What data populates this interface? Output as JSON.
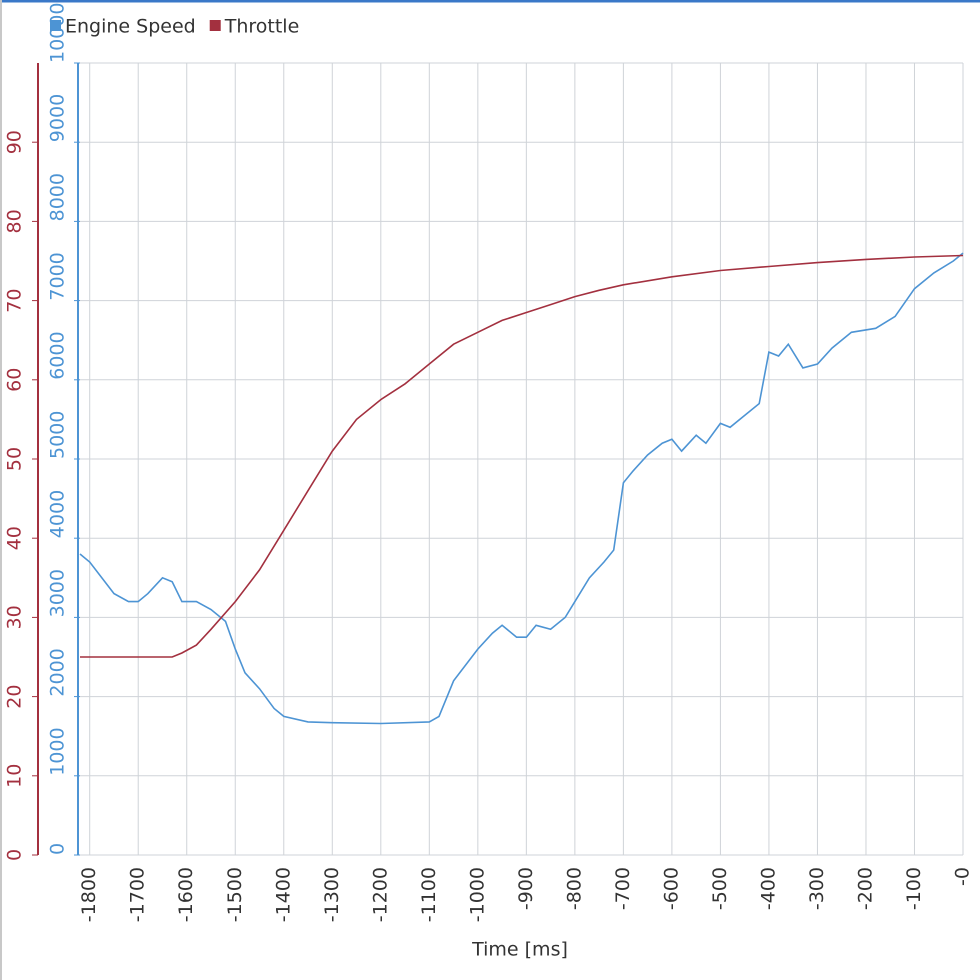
{
  "chart_data": {
    "type": "line",
    "x_label": "Time [ms]",
    "xlim": [
      -1820,
      0
    ],
    "xticks": [
      -1800,
      -1700,
      -1600,
      -1500,
      -1400,
      -1300,
      -1200,
      -1100,
      -1000,
      -900,
      -800,
      -700,
      -600,
      -500,
      -400,
      -300,
      -200,
      -100,
      {
        "value": 0,
        "label": "-0"
      }
    ],
    "ylim": [
      0,
      10000
    ],
    "yticks": [
      0,
      1000,
      2000,
      3000,
      4000,
      5000,
      6000,
      7000,
      8000,
      9000,
      10000
    ],
    "y2lim": [
      0,
      100
    ],
    "y2ticks": [
      0,
      10,
      20,
      30,
      40,
      50,
      60,
      70,
      80,
      90
    ],
    "grid": true,
    "legend": "top-left",
    "series": [
      {
        "name": "Engine Speed",
        "color": "#4d94d4",
        "x": [
          -1820,
          -1800,
          -1750,
          -1720,
          -1700,
          -1680,
          -1650,
          -1630,
          -1610,
          -1580,
          -1550,
          -1520,
          -1500,
          -1480,
          -1450,
          -1420,
          -1400,
          -1350,
          -1300,
          -1200,
          -1100,
          -1080,
          -1050,
          -1000,
          -970,
          -950,
          -920,
          -900,
          -880,
          -850,
          -820,
          -800,
          -770,
          -740,
          -720,
          -700,
          -680,
          -650,
          -620,
          -600,
          -580,
          -550,
          -530,
          -500,
          -480,
          -450,
          -420,
          -400,
          -380,
          -360,
          -330,
          -300,
          -270,
          -230,
          -180,
          -140,
          -100,
          -60,
          -20,
          0
        ],
        "values": [
          3800,
          3700,
          3300,
          3200,
          3200,
          3300,
          3500,
          3450,
          3200,
          3200,
          3100,
          2950,
          2600,
          2300,
          2100,
          1850,
          1750,
          1680,
          1670,
          1660,
          1680,
          1750,
          2200,
          2600,
          2800,
          2900,
          2750,
          2750,
          2900,
          2850,
          3000,
          3200,
          3500,
          3700,
          3850,
          4700,
          4850,
          5050,
          5200,
          5250,
          5100,
          5300,
          5200,
          5450,
          5400,
          5550,
          5700,
          6350,
          6300,
          6450,
          6150,
          6200,
          6400,
          6600,
          6650,
          6800,
          7150,
          7350,
          7500,
          7600
        ]
      },
      {
        "name": "Throttle",
        "color": "#a3303f",
        "axis": "y2",
        "x": [
          -1820,
          -1630,
          -1610,
          -1580,
          -1550,
          -1500,
          -1450,
          -1400,
          -1350,
          -1300,
          -1250,
          -1200,
          -1150,
          -1100,
          -1050,
          -1000,
          -950,
          -900,
          -850,
          -800,
          -750,
          -700,
          -600,
          -500,
          -400,
          -300,
          -200,
          -100,
          0
        ],
        "values": [
          25,
          25,
          25.5,
          26.5,
          28.5,
          32,
          36,
          41,
          46,
          51,
          55,
          57.5,
          59.5,
          62,
          64.5,
          66,
          67.5,
          68.5,
          69.5,
          70.5,
          71.3,
          72,
          73,
          73.8,
          74.3,
          74.8,
          75.2,
          75.5,
          75.7
        ]
      }
    ]
  }
}
